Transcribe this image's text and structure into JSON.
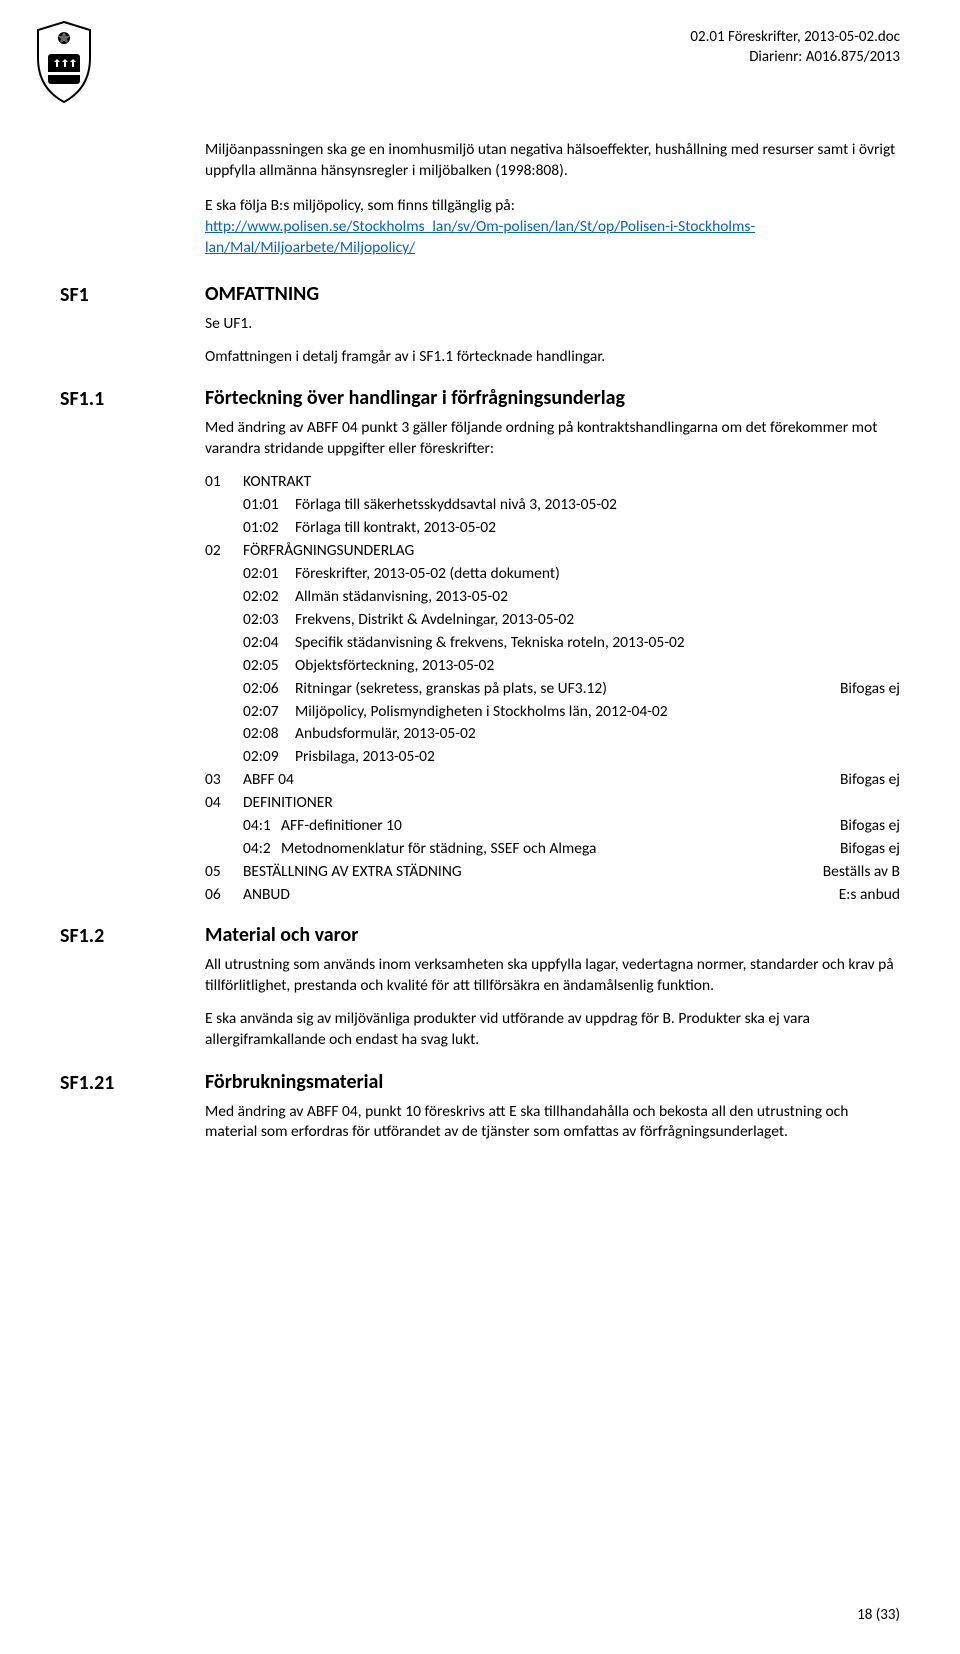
{
  "header": {
    "doc_title": "02.01 Föreskrifter, 2013-05-02.doc",
    "diarienr": "Diarienr: A016.875/2013"
  },
  "intro": {
    "p1": "Miljöanpassningen ska ge en inomhusmiljö utan negativa hälsoeffekter, hushållning med resurser samt i övrigt uppfylla allmänna hänsynsregler i miljöbalken (1998:808).",
    "p2": "E ska följa B:s miljöpolicy, som finns tillgänglig på:",
    "link": "http://www.polisen.se/Stockholms_lan/sv/Om-polisen/lan/St/op/Polisen-i-Stockholms-lan/Mal/Miljoarbete/Miljopolicy/"
  },
  "sf1": {
    "label": "SF1",
    "heading": "OMFATTNING",
    "p1": "Se UF1.",
    "p2": "Omfattningen i detalj framgår av i SF1.1 förtecknade handlingar."
  },
  "sf1_1": {
    "label": "SF1.1",
    "heading": "Förteckning över handlingar i förfrågningsunderlag",
    "p1": "Med ändring av ABFF 04 punkt 3 gäller följande ordning på kontraktshandlingarna om det förekommer mot varandra stridande uppgifter eller föreskrifter:",
    "items": [
      {
        "level": 1,
        "num": "01",
        "label": "KONTRAKT"
      },
      {
        "level": 2,
        "num": "01:01",
        "label": "Förlaga till säkerhetsskyddsavtal nivå 3, 2013-05-02"
      },
      {
        "level": 2,
        "num": "01:02",
        "label": "Förlaga till kontrakt, 2013-05-02"
      },
      {
        "level": 1,
        "num": "02",
        "label": "FÖRFRÅGNINGSUNDERLAG"
      },
      {
        "level": 2,
        "num": "02:01",
        "label": "Föreskrifter, 2013-05-02 (detta dokument)"
      },
      {
        "level": 2,
        "num": "02:02",
        "label": "Allmän städanvisning, 2013-05-02"
      },
      {
        "level": 2,
        "num": "02:03",
        "label": "Frekvens, Distrikt & Avdelningar, 2013-05-02"
      },
      {
        "level": 2,
        "num": "02:04",
        "label": "Specifik städanvisning & frekvens, Tekniska roteln, 2013-05-02"
      },
      {
        "level": 2,
        "num": "02:05",
        "label": "Objektsförteckning, 2013-05-02"
      },
      {
        "level": 2,
        "num": "02:06",
        "label": "Ritningar (sekretess, granskas på plats, se UF3.12)",
        "suffix": "Bifogas ej"
      },
      {
        "level": 2,
        "num": "02:07",
        "label": "Miljöpolicy, Polismyndigheten i Stockholms län, 2012-04-02"
      },
      {
        "level": 2,
        "num": "02:08",
        "label": "Anbudsformulär, 2013-05-02"
      },
      {
        "level": 2,
        "num": "02:09",
        "label": "Prisbilaga, 2013-05-02"
      },
      {
        "level": 1,
        "num": "03",
        "label": "ABFF 04",
        "suffix": "Bifogas ej"
      },
      {
        "level": 1,
        "num": "04",
        "label": "DEFINITIONER"
      },
      {
        "level": 2,
        "num": "04:1",
        "label": "AFF-definitioner 10",
        "suffix": "Bifogas ej"
      },
      {
        "level": 2,
        "num": "04:2",
        "label": "Metodnomenklatur för städning, SSEF och Almega",
        "suffix": "Bifogas ej"
      },
      {
        "level": 1,
        "num": "05",
        "label": "BESTÄLLNING AV EXTRA STÄDNING",
        "suffix": "Beställs av B"
      },
      {
        "level": 1,
        "num": "06",
        "label": "ANBUD",
        "suffix": "E:s anbud"
      }
    ]
  },
  "sf1_2": {
    "label": "SF1.2",
    "heading": "Material och varor",
    "p1": "All utrustning som används inom verksamheten ska uppfylla lagar, vedertagna normer, standarder och krav på tillförlitlighet, prestanda och kvalité för att tillförsäkra en ändamålsenlig funktion.",
    "p2": "E ska använda sig av miljövänliga produkter vid utförande av uppdrag för B. Produkter ska ej vara allergiframkallande och endast ha svag lukt."
  },
  "sf1_21": {
    "label": "SF1.21",
    "heading": "Förbrukningsmaterial",
    "p1": "Med ändring av ABFF 04, punkt 10 föreskrivs att E ska tillhandahålla och bekosta all den utrustning och material som erfordras för utförandet av de tjänster som omfattas av förfrågningsunderlaget."
  },
  "footer": {
    "page": "18 (33)"
  },
  "colors": {
    "text": "#000000",
    "link": "#0563c1",
    "background": "#ffffff"
  }
}
